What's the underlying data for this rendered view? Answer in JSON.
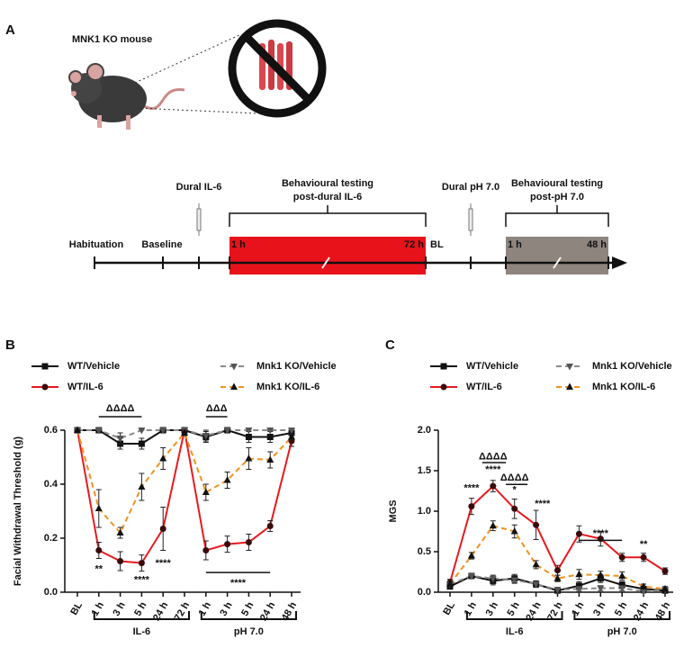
{
  "schematic": {
    "panel": "A",
    "mouse_label": "MNK1 KO mouse",
    "injections": [
      "Dural IL-6",
      "Dural pH 7.0"
    ],
    "phases": [
      {
        "lines": [
          "Behavioural testing",
          "post-dural IL-6"
        ],
        "start": "1 h",
        "end": "72 h"
      },
      {
        "lines": [
          "Behavioural testing",
          "post-pH 7.0"
        ],
        "start": "1 h",
        "end": "48 h"
      }
    ],
    "timeline_labels": [
      "Habituation",
      "Baseline",
      "BL"
    ]
  },
  "chart_data": [
    {
      "type": "line",
      "panel": "B",
      "y_label": "Facial Withdrawal Threshold (g)",
      "categories": [
        "BL",
        "1 h",
        "3 h",
        "5 h",
        "24 h",
        "72 h",
        "1 h",
        "3 h",
        "5 h",
        "24 h",
        "48 h"
      ],
      "ylim": [
        0,
        0.6
      ],
      "yticks": [
        {
          "value": 0,
          "label": "0.0"
        },
        0.2,
        0.4,
        0.6
      ],
      "groups": [
        "IL-6",
        "pH 7.0"
      ],
      "series": [
        {
          "name": "WT/Vehicle",
          "color": "#111111",
          "marker": "square",
          "marker_color": "#111111",
          "dashed": false,
          "values": [
            0.6,
            0.6,
            0.55,
            0.55,
            0.6,
            0.6,
            0.575,
            0.6,
            0.575,
            0.575,
            0.59
          ],
          "errors": [
            0,
            0,
            0.02,
            0.02,
            0,
            0,
            0.02,
            0,
            0.02,
            0.02,
            0.01
          ]
        },
        {
          "name": "WT/IL-6",
          "color": "#e8191e",
          "marker": "circle",
          "marker_color": "#3a0a0a",
          "dashed": false,
          "values": [
            0.6,
            0.155,
            0.115,
            0.108,
            0.235,
            0.6,
            0.155,
            0.178,
            0.185,
            0.245,
            0.56
          ],
          "errors": [
            0,
            0.03,
            0.035,
            0.03,
            0.08,
            0,
            0.035,
            0.03,
            0.03,
            0.02,
            0.02
          ]
        },
        {
          "name": "Mnk1 KO/Vehicle",
          "color": "#8a8a8a",
          "marker": "triangle-down",
          "marker_color": "#555555",
          "dashed": true,
          "values": [
            0.6,
            0.6,
            0.57,
            0.6,
            0.6,
            0.6,
            0.58,
            0.6,
            0.6,
            0.6,
            0.6
          ],
          "errors": [
            0,
            0,
            0.02,
            0,
            0,
            0,
            0.02,
            0,
            0,
            0,
            0
          ]
        },
        {
          "name": "Mnk1 KO/IL-6",
          "color": "#f0921e",
          "marker": "triangle-up",
          "marker_color": "#111111",
          "dashed": true,
          "values": [
            0.6,
            0.31,
            0.22,
            0.39,
            0.495,
            0.59,
            0.37,
            0.415,
            0.495,
            0.49,
            0.575
          ],
          "errors": [
            0,
            0.07,
            0.02,
            0.05,
            0.04,
            0.01,
            0.03,
            0.03,
            0.04,
            0.03,
            0.01
          ]
        }
      ],
      "annotations": [
        "ΔΔΔΔ",
        "ΔΔΔ",
        "**",
        "****",
        "****",
        "****"
      ]
    },
    {
      "type": "line",
      "panel": "C",
      "y_label": "MGS",
      "categories": [
        "BL",
        "1 h",
        "3 h",
        "5 h",
        "24 h",
        "72 h",
        "1 h",
        "3 h",
        "5 h",
        "24 h",
        "48 h"
      ],
      "ylim": [
        0,
        2
      ],
      "yticks": [
        {
          "value": 0,
          "label": "0.0"
        },
        0.5,
        {
          "value": 1,
          "label": "1.0"
        },
        1.5,
        {
          "value": 2,
          "label": "2.0"
        }
      ],
      "groups": [
        "IL-6",
        "pH 7.0"
      ],
      "series": [
        {
          "name": "WT/Vehicle",
          "color": "#111111",
          "marker": "square",
          "marker_color": "#111111",
          "dashed": false,
          "values": [
            0.07,
            0.2,
            0.14,
            0.17,
            0.1,
            0.02,
            0.08,
            0.17,
            0.09,
            0.04,
            0.02
          ],
          "errors": [
            0.03,
            0.03,
            0.05,
            0.05,
            0.04,
            0.03,
            0.05,
            0.05,
            0.04,
            0.03,
            0.03
          ]
        },
        {
          "name": "WT/IL-6",
          "color": "#e8191e",
          "marker": "circle",
          "marker_color": "#3a0a0a",
          "dashed": false,
          "values": [
            0.12,
            1.06,
            1.31,
            1.03,
            0.83,
            0.27,
            0.72,
            0.66,
            0.43,
            0.43,
            0.26
          ],
          "errors": [
            0.04,
            0.1,
            0.07,
            0.12,
            0.18,
            0.06,
            0.1,
            0.09,
            0.05,
            0.05,
            0.04
          ]
        },
        {
          "name": "Mnk1 KO/Vehicle",
          "color": "#8a8a8a",
          "marker": "triangle-down",
          "marker_color": "#555555",
          "dashed": true,
          "values": [
            0.1,
            0.2,
            0.17,
            0.15,
            0.1,
            0.03,
            0.04,
            0.05,
            0.05,
            0.01,
            0.03
          ],
          "errors": [
            0.03,
            0.03,
            0.04,
            0.04,
            0.03,
            0.03,
            0.03,
            0.03,
            0.03,
            0.02,
            0.02
          ]
        },
        {
          "name": "Mnk1 KO/IL-6",
          "color": "#f0921e",
          "marker": "triangle-up",
          "marker_color": "#111111",
          "dashed": true,
          "values": [
            0.1,
            0.45,
            0.82,
            0.75,
            0.34,
            0.17,
            0.22,
            0.21,
            0.2,
            0.07,
            0.04
          ],
          "errors": [
            0.03,
            0.04,
            0.06,
            0.08,
            0.05,
            0.04,
            0.06,
            0.05,
            0.05,
            0.03,
            0.03
          ]
        }
      ],
      "annotations": [
        "****",
        "ΔΔΔΔ",
        "****",
        "ΔΔΔΔ",
        "*",
        "****",
        "****",
        "**"
      ]
    }
  ]
}
